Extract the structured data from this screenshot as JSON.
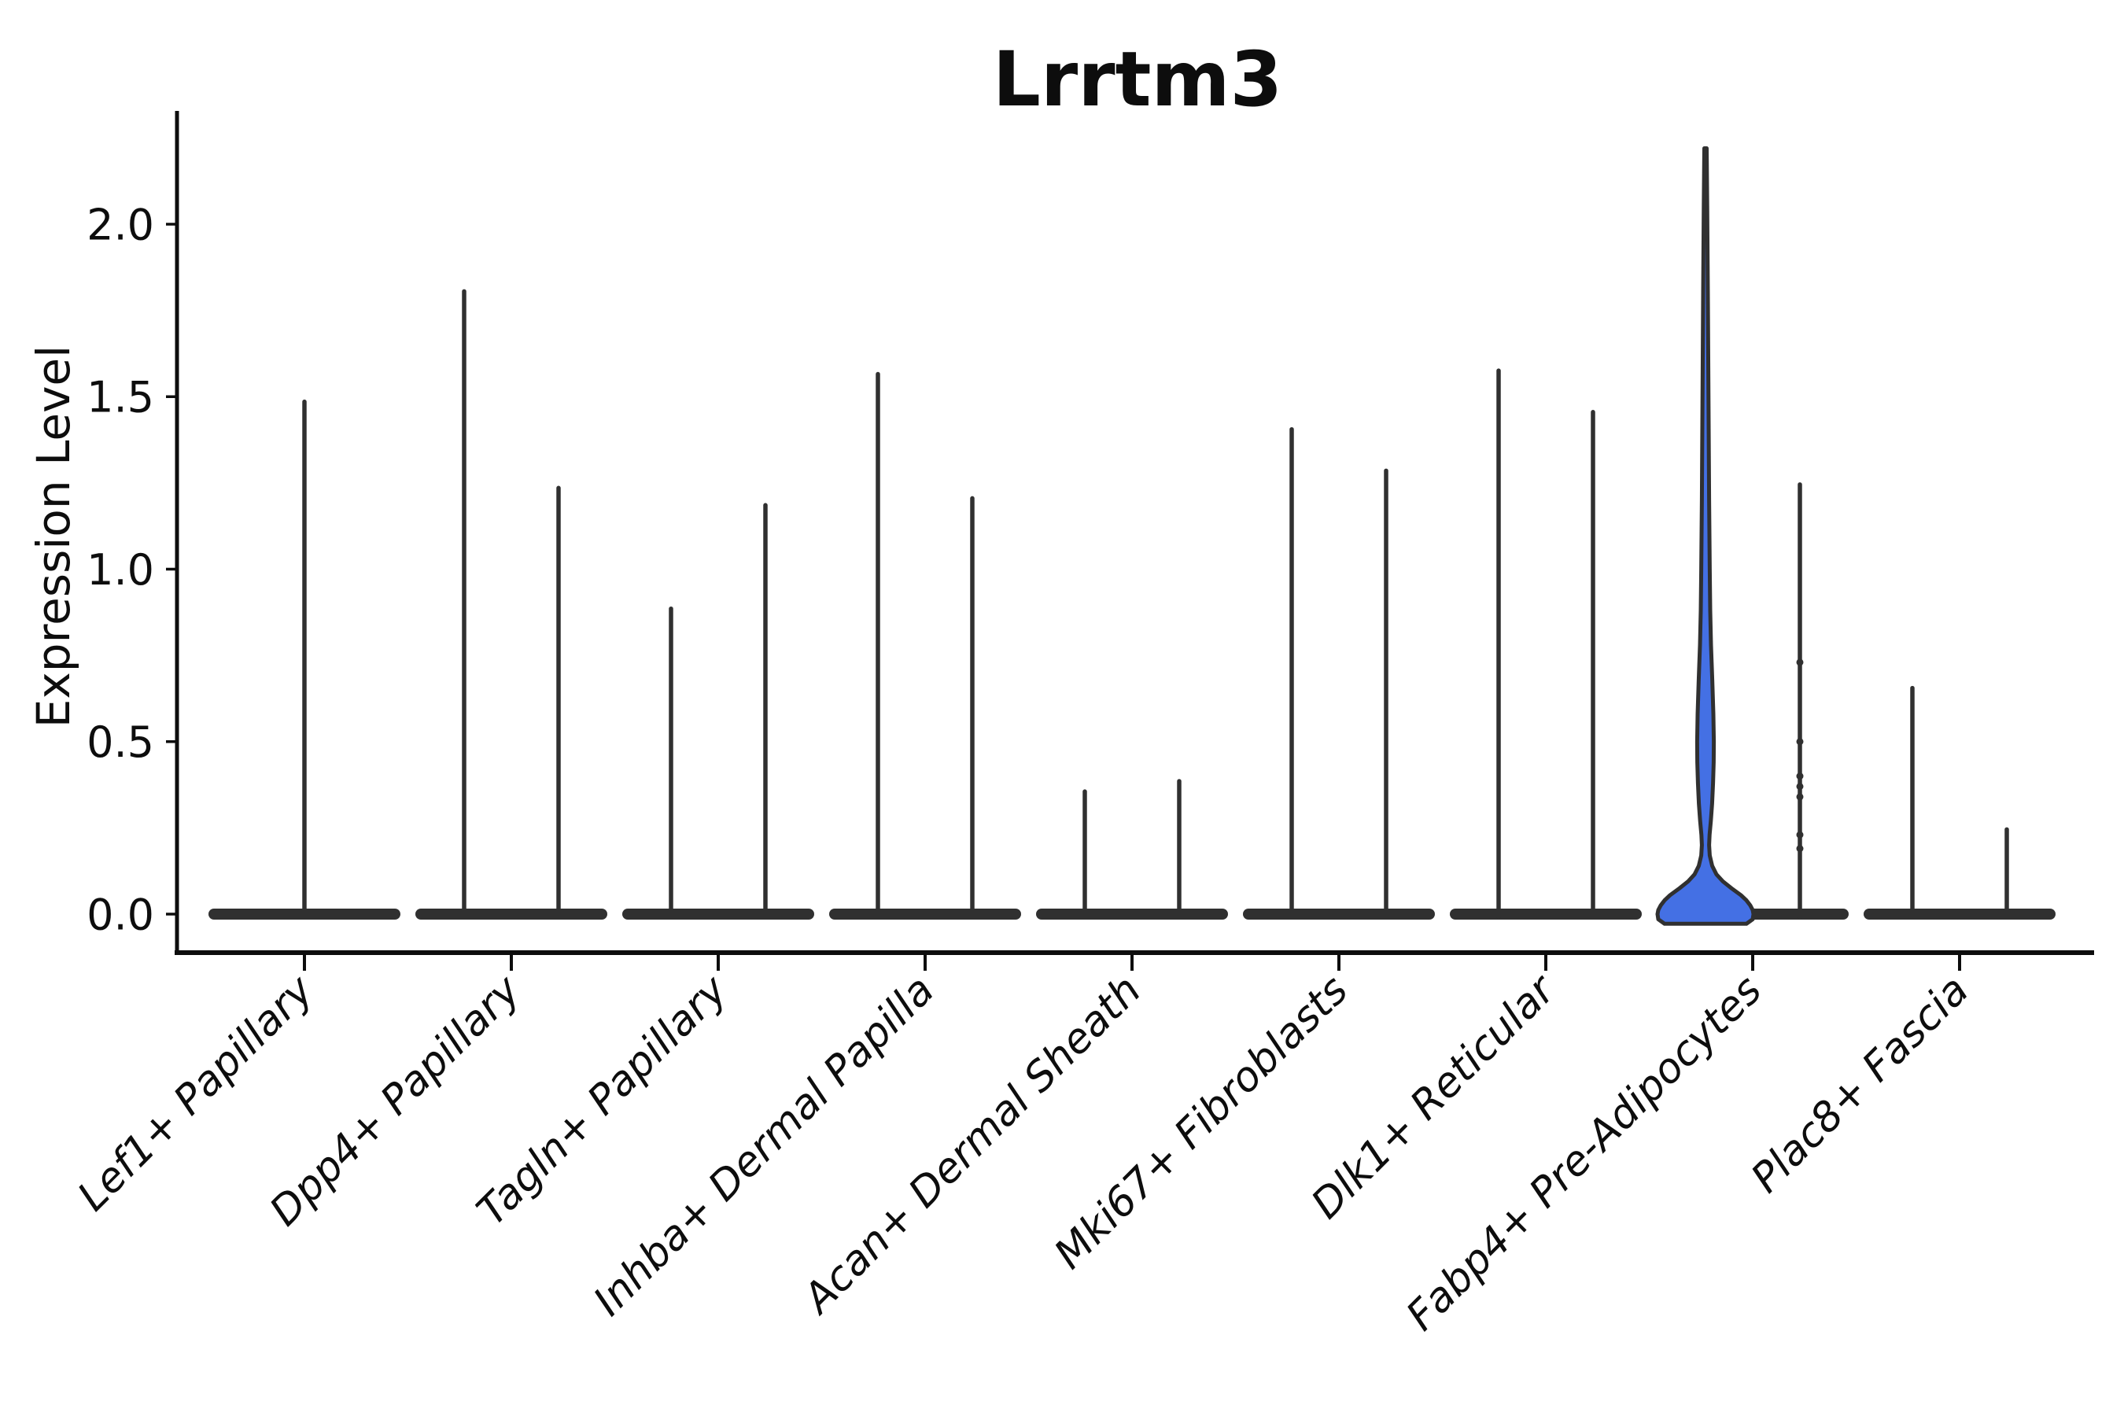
{
  "chart_data": {
    "type": "violin",
    "title": "Lrrtm3",
    "xlabel": "",
    "ylabel": "Expression Level",
    "ylim": [
      -0.1,
      2.33
    ],
    "yticks": [
      0.0,
      0.5,
      1.0,
      1.5,
      2.0
    ],
    "ytick_labels": [
      "0.0",
      "0.5",
      "1.0",
      "1.5",
      "2.0"
    ],
    "grid": false,
    "legend": "none",
    "categories": [
      "Lef1+ Papillary",
      "Dpp4+ Papillary",
      "Tagln+ Papillary",
      "Inhba+ Dermal Papilla",
      "Acan+ Dermal Sheath",
      "Mki67+ Fibroblasts",
      "Dlk1+ Reticular",
      "Fabp4+ Pre-Adipocytes",
      "Plac8+ Fascia"
    ],
    "colors": {
      "line": "#303030",
      "spine": "#0d0d0d",
      "text": "#0d0d0d",
      "highlight_fill": "#4470E4",
      "background": "#ffffff"
    },
    "description": "Violin plot of Lrrtm3 expression; most violins collapse to a wide zero-density base with a thin tail spike; each category shows two grouped violins except the first (one centered); the left Fabp4+ Pre-Adipocytes violin is blue-filled with a visible density bulge.",
    "series": [
      {
        "category": "Lef1+ Papillary",
        "violins": [
          {
            "pos": "center",
            "max": 1.49
          }
        ]
      },
      {
        "category": "Dpp4+ Papillary",
        "violins": [
          {
            "pos": "left",
            "max": 1.81
          },
          {
            "pos": "right",
            "max": 1.24
          }
        ]
      },
      {
        "category": "Tagln+ Papillary",
        "violins": [
          {
            "pos": "left",
            "max": 0.89
          },
          {
            "pos": "right",
            "max": 1.19
          }
        ]
      },
      {
        "category": "Inhba+ Dermal Papilla",
        "violins": [
          {
            "pos": "left",
            "max": 1.57
          },
          {
            "pos": "right",
            "max": 1.21
          }
        ]
      },
      {
        "category": "Acan+ Dermal Sheath",
        "violins": [
          {
            "pos": "left",
            "max": 0.36
          },
          {
            "pos": "right",
            "max": 0.39
          }
        ]
      },
      {
        "category": "Mki67+ Fibroblasts",
        "violins": [
          {
            "pos": "left",
            "max": 1.41
          },
          {
            "pos": "right",
            "max": 1.29
          }
        ]
      },
      {
        "category": "Dlk1+ Reticular",
        "violins": [
          {
            "pos": "left",
            "max": 1.58
          },
          {
            "pos": "right",
            "max": 1.46
          }
        ]
      },
      {
        "category": "Fabp4+ Pre-Adipocytes",
        "violins": [
          {
            "pos": "left",
            "max": 2.22,
            "filled": true,
            "fill_color": "#4470E4",
            "profile": [
              [
                2.22,
                1.5
              ],
              [
                2.05,
                2.2
              ],
              [
                1.8,
                3.0
              ],
              [
                1.5,
                3.8
              ],
              [
                1.2,
                4.6
              ],
              [
                1.0,
                5.4
              ],
              [
                0.88,
                6.0
              ],
              [
                0.78,
                7.0
              ],
              [
                0.68,
                8.6
              ],
              [
                0.58,
                10.0
              ],
              [
                0.5,
                10.6
              ],
              [
                0.44,
                10.4
              ],
              [
                0.38,
                9.6
              ],
              [
                0.32,
                8.4
              ],
              [
                0.27,
                6.8
              ],
              [
                0.23,
                5.2
              ],
              [
                0.2,
                4.6
              ],
              [
                0.17,
                5.4
              ],
              [
                0.14,
                8.5
              ],
              [
                0.115,
                14
              ],
              [
                0.095,
                22
              ],
              [
                0.075,
                33
              ],
              [
                0.055,
                45
              ],
              [
                0.04,
                52
              ],
              [
                0.025,
                57
              ],
              [
                0.012,
                60
              ],
              [
                0.0,
                61
              ],
              [
                -0.015,
                60
              ],
              [
                -0.028,
                52
              ]
            ]
          },
          {
            "pos": "right",
            "max": 1.25,
            "points": [
              0.73,
              0.5,
              0.4,
              0.37,
              0.34,
              0.23,
              0.19
            ]
          }
        ]
      },
      {
        "category": "Plac8+ Fascia",
        "violins": [
          {
            "pos": "left",
            "max": 0.66
          },
          {
            "pos": "right",
            "max": 0.25
          }
        ]
      }
    ]
  }
}
